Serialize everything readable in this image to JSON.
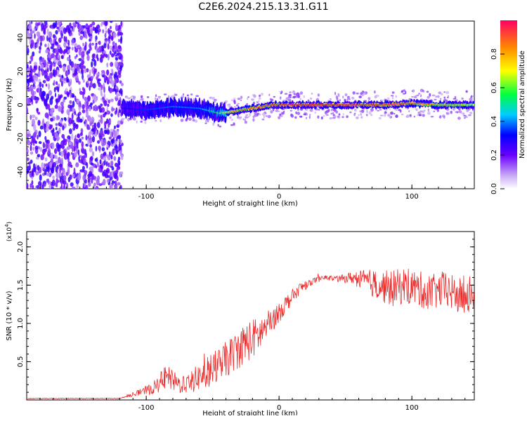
{
  "title": "C2E6.2024.215.13.31.G11",
  "chart_data": [
    {
      "type": "heatmap",
      "xlabel": "Height of straight line (km)",
      "ylabel": "Frequency (Hz)",
      "xlim": [
        -190,
        147
      ],
      "ylim": [
        -50,
        50
      ],
      "x_ticks": [
        -100,
        0,
        100
      ],
      "y_ticks": [
        -40,
        -20,
        0,
        20,
        40
      ],
      "colorbar": {
        "label": "Normalized spectral amplitude",
        "range": [
          0,
          1
        ],
        "ticks": [
          0.0,
          0.2,
          0.4,
          0.6,
          0.8
        ]
      },
      "noise_region_x": [
        -190,
        -118
      ],
      "ridge": {
        "x": [
          -118,
          -100,
          -80,
          -60,
          -45,
          -35,
          -20,
          -5,
          10,
          40,
          80,
          100,
          120,
          147
        ],
        "y": [
          -2,
          -3,
          -1,
          -2,
          -5,
          -4,
          -2,
          0,
          0,
          0,
          0,
          1,
          0,
          0
        ],
        "amplitude": [
          0.3,
          0.35,
          0.4,
          0.4,
          0.6,
          0.8,
          0.9,
          0.95,
          1.0,
          1.0,
          0.95,
          0.9,
          0.8,
          0.7
        ]
      }
    },
    {
      "type": "line",
      "xlabel": "Height of straight line (km)",
      "ylabel": "SNR (10 * v/v)",
      "yscale_label": "(x10^4)",
      "xlim": [
        -190,
        147
      ],
      "ylim": [
        0,
        2.2
      ],
      "x_ticks": [
        -100,
        0,
        100
      ],
      "y_ticks": [
        0.5,
        1.0,
        1.5,
        2.0
      ],
      "y_tick_labels": [
        "0.5",
        "1.0",
        "1.5",
        "2.0"
      ],
      "color": "#ee2a2a",
      "series": [
        {
          "name": "",
          "x": [
            -190,
            -120,
            -105,
            -95,
            -85,
            -75,
            -65,
            -55,
            -45,
            -35,
            -25,
            -15,
            -5,
            5,
            15,
            25,
            35,
            45,
            55,
            65,
            75,
            85,
            95,
            105,
            115,
            125,
            135,
            147
          ],
          "y": [
            0.02,
            0.02,
            0.1,
            0.15,
            0.3,
            0.2,
            0.25,
            0.35,
            0.45,
            0.6,
            0.75,
            0.85,
            1.05,
            1.25,
            1.45,
            1.55,
            1.6,
            1.58,
            1.6,
            1.55,
            1.5,
            1.45,
            1.5,
            1.45,
            1.4,
            1.45,
            1.35,
            1.4
          ],
          "noise": [
            0,
            0,
            0.05,
            0.1,
            0.2,
            0.15,
            0.2,
            0.25,
            0.3,
            0.3,
            0.35,
            0.3,
            0.2,
            0.15,
            0.1,
            0.05,
            0.04,
            0.05,
            0.1,
            0.2,
            0.25,
            0.3,
            0.3,
            0.3,
            0.3,
            0.3,
            0.3,
            0.3
          ]
        }
      ]
    }
  ]
}
